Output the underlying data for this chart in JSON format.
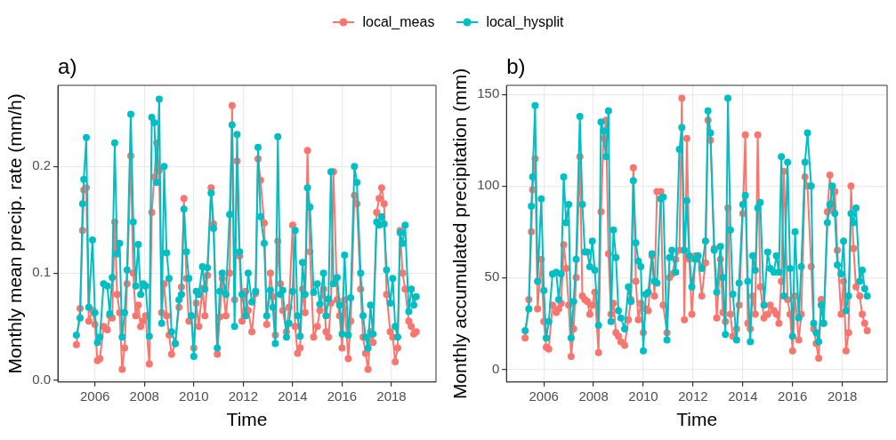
{
  "chart_data": [
    {
      "type": "line",
      "title": "a)",
      "xlabel": "Time",
      "ylabel": "Monthly mean precip. rate (mm/h)",
      "xlim": [
        2004.5,
        2019.8
      ],
      "xticks": [
        2006,
        2008,
        2010,
        2012,
        2014,
        2016,
        2018
      ],
      "ylim": [
        -0.002,
        0.276
      ],
      "yticks": [
        {
          "value": 0,
          "label": "0.0"
        },
        {
          "value": 0.1,
          "label": "0.1"
        },
        {
          "value": 0.2,
          "label": "0.2"
        }
      ],
      "grid": true,
      "legend": "top",
      "marker": "circle",
      "line_style": "solid",
      "x": [
        2005.25,
        2005.4,
        2005.5,
        2005.55,
        2005.65,
        2005.75,
        2005.9,
        2006.0,
        2006.1,
        2006.2,
        2006.35,
        2006.5,
        2006.6,
        2006.7,
        2006.8,
        2006.9,
        2007.0,
        2007.1,
        2007.2,
        2007.3,
        2007.45,
        2007.55,
        2007.65,
        2007.75,
        2007.85,
        2007.95,
        2008.05,
        2008.2,
        2008.3,
        2008.4,
        2008.5,
        2008.6,
        2008.7,
        2008.8,
        2008.9,
        2009.0,
        2009.1,
        2009.25,
        2009.4,
        2009.5,
        2009.6,
        2009.7,
        2009.8,
        2009.9,
        2010.0,
        2010.1,
        2010.2,
        2010.35,
        2010.45,
        2010.55,
        2010.7,
        2010.8,
        2010.95,
        2011.05,
        2011.15,
        2011.3,
        2011.45,
        2011.55,
        2011.65,
        2011.75,
        2011.85,
        2011.95,
        2012.1,
        2012.2,
        2012.35,
        2012.5,
        2012.6,
        2012.7,
        2012.85,
        2012.95,
        2013.1,
        2013.2,
        2013.3,
        2013.4,
        2013.5,
        2013.6,
        2013.75,
        2013.85,
        2014.0,
        2014.1,
        2014.2,
        2014.3,
        2014.4,
        2014.5,
        2014.6,
        2014.7,
        2014.85,
        2015.0,
        2015.1,
        2015.25,
        2015.35,
        2015.45,
        2015.55,
        2015.65,
        2015.8,
        2015.9,
        2016.0,
        2016.1,
        2016.25,
        2016.35,
        2016.5,
        2016.6,
        2016.75,
        2016.85,
        2016.95,
        2017.05,
        2017.15,
        2017.25,
        2017.4,
        2017.5,
        2017.6,
        2017.7,
        2017.8,
        2017.95,
        2018.05,
        2018.15,
        2018.25,
        2018.35,
        2018.45,
        2018.55,
        2018.7,
        2018.8,
        2018.9,
        2019.0
      ],
      "series": [
        {
          "name": "local_meas",
          "color": "#f8766d",
          "values": [
            0.033,
            0.067,
            0.14,
            0.178,
            0.18,
            0.055,
            0.065,
            0.052,
            0.018,
            0.02,
            0.05,
            0.047,
            0.06,
            0.058,
            0.148,
            0.08,
            0.063,
            0.01,
            0.03,
            0.09,
            0.21,
            0.1,
            0.06,
            0.07,
            0.05,
            0.055,
            0.06,
            0.015,
            0.157,
            0.19,
            0.222,
            0.196,
            0.063,
            0.09,
            0.06,
            0.042,
            0.024,
            0.034,
            0.068,
            0.087,
            0.17,
            0.095,
            0.055,
            0.06,
            0.03,
            0.072,
            0.05,
            0.086,
            0.06,
            0.098,
            0.18,
            0.146,
            0.024,
            0.059,
            0.095,
            0.06,
            0.1,
            0.257,
            0.075,
            0.205,
            0.116,
            0.055,
            0.083,
            0.065,
            0.045,
            0.081,
            0.207,
            0.187,
            0.147,
            0.052,
            0.1,
            0.078,
            0.042,
            0.13,
            0.09,
            0.065,
            0.045,
            0.068,
            0.145,
            0.05,
            0.025,
            0.03,
            0.085,
            0.063,
            0.215,
            0.12,
            0.04,
            0.05,
            0.065,
            0.085,
            0.045,
            0.04,
            0.072,
            0.195,
            0.075,
            0.06,
            0.03,
            0.075,
            0.02,
            0.055,
            0.173,
            0.165,
            0.085,
            0.04,
            0.025,
            0.01,
            0.045,
            0.035,
            0.157,
            0.17,
            0.18,
            0.165,
            0.08,
            0.045,
            0.04,
            0.017,
            0.03,
            0.14,
            0.1,
            0.085,
            0.055,
            0.05,
            0.043,
            0.045
          ]
        },
        {
          "name": "local_hysplit",
          "color": "#00bfc4",
          "values": [
            0.042,
            0.058,
            0.165,
            0.188,
            0.227,
            0.068,
            0.131,
            0.063,
            0.035,
            0.04,
            0.09,
            0.088,
            0.062,
            0.096,
            0.222,
            0.118,
            0.128,
            0.04,
            0.063,
            0.103,
            0.249,
            0.148,
            0.088,
            0.127,
            0.08,
            0.09,
            0.088,
            0.041,
            0.246,
            0.241,
            0.185,
            0.263,
            0.053,
            0.2,
            0.119,
            0.095,
            0.045,
            0.034,
            0.075,
            0.08,
            0.16,
            0.12,
            0.095,
            0.06,
            0.022,
            0.083,
            0.08,
            0.106,
            0.085,
            0.105,
            0.175,
            0.142,
            0.03,
            0.083,
            0.1,
            0.08,
            0.155,
            0.239,
            0.05,
            0.23,
            0.12,
            0.08,
            0.06,
            0.1,
            0.073,
            0.083,
            0.218,
            0.153,
            0.128,
            0.06,
            0.084,
            0.068,
            0.034,
            0.228,
            0.08,
            0.084,
            0.04,
            0.053,
            0.083,
            0.14,
            0.06,
            0.041,
            0.11,
            0.08,
            0.18,
            0.162,
            0.082,
            0.09,
            0.071,
            0.1,
            0.06,
            0.076,
            0.195,
            0.09,
            0.096,
            0.07,
            0.043,
            0.117,
            0.042,
            0.077,
            0.2,
            0.185,
            0.1,
            0.06,
            0.04,
            0.03,
            0.07,
            0.043,
            0.148,
            0.145,
            0.153,
            0.146,
            0.103,
            0.072,
            0.095,
            0.05,
            0.04,
            0.138,
            0.128,
            0.145,
            0.064,
            0.085,
            0.07,
            0.078
          ]
        }
      ]
    },
    {
      "type": "line",
      "title": "b)",
      "xlabel": "Time",
      "ylabel": "Monthly accumulated precipitation (mm)",
      "xlim": [
        2004.5,
        2019.8
      ],
      "xticks": [
        2006,
        2008,
        2010,
        2012,
        2014,
        2016,
        2018
      ],
      "ylim": [
        -7,
        155
      ],
      "yticks": [
        0,
        50,
        100,
        150
      ],
      "grid": true,
      "marker": "circle",
      "line_style": "solid",
      "x": [
        2005.25,
        2005.4,
        2005.5,
        2005.55,
        2005.65,
        2005.75,
        2005.9,
        2006.0,
        2006.1,
        2006.2,
        2006.35,
        2006.5,
        2006.6,
        2006.7,
        2006.8,
        2006.9,
        2007.0,
        2007.1,
        2007.2,
        2007.3,
        2007.45,
        2007.55,
        2007.65,
        2007.75,
        2007.85,
        2007.95,
        2008.05,
        2008.2,
        2008.3,
        2008.4,
        2008.5,
        2008.6,
        2008.7,
        2008.8,
        2008.9,
        2009.0,
        2009.1,
        2009.25,
        2009.4,
        2009.5,
        2009.6,
        2009.7,
        2009.8,
        2009.9,
        2010.0,
        2010.1,
        2010.2,
        2010.35,
        2010.45,
        2010.55,
        2010.7,
        2010.8,
        2010.95,
        2011.05,
        2011.15,
        2011.3,
        2011.45,
        2011.55,
        2011.65,
        2011.75,
        2011.85,
        2011.95,
        2012.1,
        2012.2,
        2012.35,
        2012.5,
        2012.6,
        2012.7,
        2012.85,
        2012.95,
        2013.1,
        2013.2,
        2013.3,
        2013.4,
        2013.5,
        2013.6,
        2013.75,
        2013.85,
        2014.0,
        2014.1,
        2014.2,
        2014.3,
        2014.4,
        2014.5,
        2014.6,
        2014.7,
        2014.85,
        2015.0,
        2015.1,
        2015.25,
        2015.35,
        2015.45,
        2015.55,
        2015.65,
        2015.8,
        2015.9,
        2016.0,
        2016.1,
        2016.25,
        2016.35,
        2016.5,
        2016.6,
        2016.75,
        2016.85,
        2016.95,
        2017.05,
        2017.15,
        2017.25,
        2017.4,
        2017.5,
        2017.6,
        2017.7,
        2017.8,
        2017.95,
        2018.05,
        2018.15,
        2018.25,
        2018.35,
        2018.45,
        2018.55,
        2018.7,
        2018.8,
        2018.9,
        2019.0
      ],
      "series": [
        {
          "color": "#f8766d",
          "values": [
            17,
            38,
            75,
            98,
            115,
            33,
            60,
            26,
            12,
            11,
            35,
            31,
            33,
            36,
            68,
            55,
            35,
            7,
            22,
            50,
            116,
            40,
            38,
            37,
            30,
            35,
            42,
            9,
            86,
            126,
            136,
            63,
            30,
            36,
            20,
            18,
            15,
            13,
            27,
            38,
            110,
            48,
            27,
            36,
            20,
            33,
            32,
            62,
            40,
            97,
            97,
            35,
            20,
            50,
            52,
            60,
            65,
            148,
            27,
            126,
            60,
            30,
            62,
            62,
            40,
            58,
            136,
            125,
            66,
            28,
            60,
            31,
            26,
            88,
            30,
            18,
            22,
            35,
            85,
            128,
            25,
            22,
            40,
            30,
            128,
            45,
            28,
            30,
            35,
            32,
            30,
            25,
            48,
            108,
            38,
            30,
            10,
            40,
            16,
            30,
            105,
            100,
            56,
            22,
            14,
            6,
            38,
            25,
            86,
            106,
            87,
            97,
            65,
            30,
            48,
            10,
            20,
            100,
            66,
            45,
            40,
            30,
            25,
            21
          ]
        },
        {
          "color": "#00bfc4",
          "values": [
            21,
            33,
            89,
            105,
            144,
            48,
            93,
            43,
            17,
            26,
            52,
            53,
            38,
            52,
            105,
            80,
            90,
            17,
            37,
            60,
            138,
            90,
            64,
            64,
            56,
            70,
            54,
            24,
            135,
            130,
            116,
            141,
            26,
            76,
            61,
            32,
            28,
            22,
            45,
            37,
            103,
            69,
            59,
            56,
            10,
            41,
            42,
            63,
            48,
            47,
            93,
            94,
            16,
            61,
            65,
            53,
            120,
            132,
            65,
            92,
            62,
            45,
            60,
            62,
            55,
            70,
            141,
            129,
            65,
            42,
            67,
            50,
            19,
            148,
            76,
            41,
            16,
            47,
            90,
            95,
            48,
            15,
            62,
            54,
            88,
            91,
            35,
            64,
            55,
            53,
            62,
            53,
            116,
            40,
            113,
            55,
            18,
            75,
            28,
            56,
            113,
            129,
            100,
            25,
            20,
            15,
            35,
            25,
            80,
            90,
            100,
            85,
            57,
            52,
            70,
            32,
            40,
            85,
            80,
            88,
            48,
            54,
            44,
            40
          ]
        }
      ]
    }
  ]
}
